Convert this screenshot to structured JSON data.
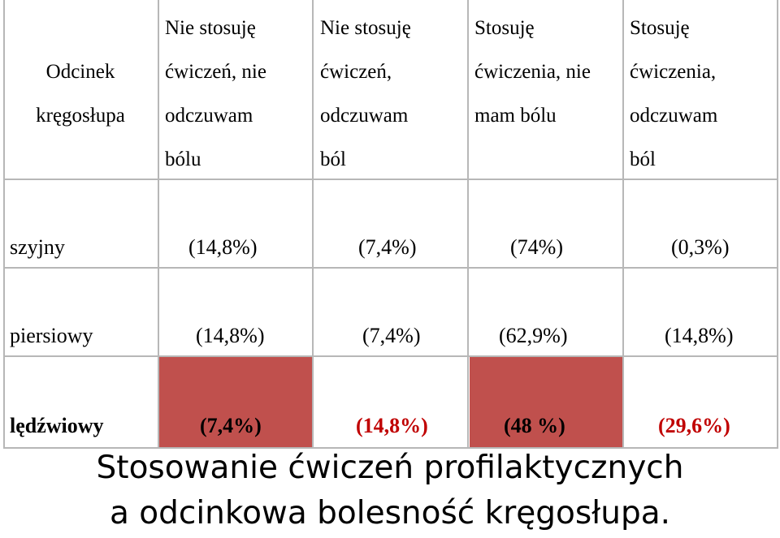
{
  "table": {
    "headers": [
      [
        "Odcinek",
        "kręgosłupa"
      ],
      [
        "Nie stosuję",
        "ćwiczeń, nie",
        "odczuwam",
        "bólu"
      ],
      [
        "Nie stosuję",
        "ćwiczeń,",
        "odczuwam",
        "ból"
      ],
      [
        "Stosuję",
        "ćwiczenia, nie",
        "mam bólu"
      ],
      [
        "Stosuję",
        "ćwiczenia,",
        "odczuwam",
        "ból"
      ]
    ],
    "rows": [
      {
        "label": "szyjny",
        "values": [
          "(14,8%)",
          "(7,4%)",
          "(74%)",
          "(0,3%)"
        ]
      },
      {
        "label": "piersiowy",
        "values": [
          "(14,8%)",
          "(7,4%)",
          "(62,9%)",
          "(14,8%)"
        ]
      },
      {
        "label": "lędźwiowy",
        "values": [
          "(7,4%)",
          "(14,8%)",
          "(48 %)",
          "(29,6%)"
        ]
      }
    ],
    "colors": {
      "highlight_fill": "#c0504d",
      "red_text": "#c00000",
      "border": "#b7b7b7"
    }
  },
  "caption": {
    "line1": "Stosowanie ćwiczeń profilaktycznych",
    "line2": "a odcinkowa bolesność kręgosłupa."
  }
}
